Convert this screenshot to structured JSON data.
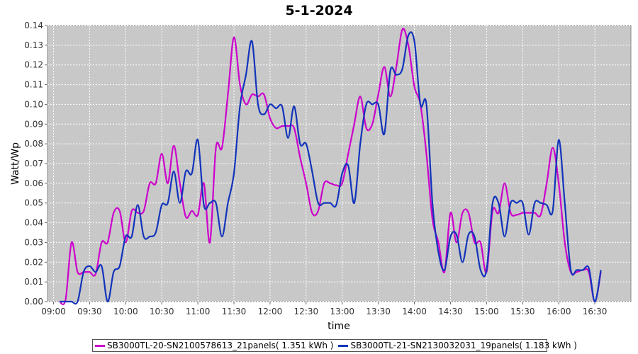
{
  "chart_data": {
    "type": "line",
    "title": "5-1-2024",
    "xlabel": "time",
    "ylabel": "Watt/Wp",
    "xlim": [
      "08:55",
      "17:00"
    ],
    "ylim": [
      0,
      0.14
    ],
    "yticks": [
      "0.00",
      "0.01",
      "0.02",
      "0.03",
      "0.04",
      "0.05",
      "0.06",
      "0.07",
      "0.08",
      "0.09",
      "0.10",
      "0.11",
      "0.12",
      "0.13",
      "0.14"
    ],
    "xticks": [
      "09:00",
      "09:30",
      "10:00",
      "10:30",
      "11:00",
      "11:30",
      "12:00",
      "12:30",
      "13:00",
      "13:30",
      "14:00",
      "14:30",
      "15:00",
      "15:30",
      "16:00",
      "16:30"
    ],
    "grid": true,
    "legend_position": "bottom",
    "series": [
      {
        "name": "SB3000TL-20-SN2100578613_21panels( 1.351 kWh )",
        "color": "#cc00cc",
        "x": [
          "09:05",
          "09:10",
          "09:15",
          "09:20",
          "09:25",
          "09:30",
          "09:35",
          "09:40",
          "09:45",
          "09:50",
          "09:55",
          "10:00",
          "10:05",
          "10:10",
          "10:15",
          "10:20",
          "10:25",
          "10:30",
          "10:35",
          "10:40",
          "10:45",
          "10:50",
          "10:55",
          "11:00",
          "11:05",
          "11:10",
          "11:15",
          "11:20",
          "11:25",
          "11:30",
          "11:35",
          "11:40",
          "11:45",
          "11:50",
          "11:55",
          "12:00",
          "12:05",
          "12:10",
          "12:15",
          "12:20",
          "12:25",
          "12:30",
          "12:35",
          "12:40",
          "12:45",
          "12:50",
          "12:55",
          "13:00",
          "13:05",
          "13:10",
          "13:15",
          "13:20",
          "13:25",
          "13:30",
          "13:35",
          "13:40",
          "13:45",
          "13:50",
          "13:55",
          "14:00",
          "14:05",
          "14:10",
          "14:15",
          "14:20",
          "14:25",
          "14:30",
          "14:35",
          "14:40",
          "14:45",
          "14:50",
          "14:55",
          "15:00",
          "15:05",
          "15:10",
          "15:15",
          "15:20",
          "15:25",
          "15:30",
          "15:35",
          "15:40",
          "15:45",
          "15:50",
          "15:55",
          "16:00",
          "16:05",
          "16:10",
          "16:15",
          "16:20",
          "16:25",
          "16:30",
          "16:35"
        ],
        "values": [
          0.0,
          0.001,
          0.03,
          0.015,
          0.015,
          0.015,
          0.014,
          0.03,
          0.03,
          0.045,
          0.046,
          0.03,
          0.046,
          0.045,
          0.046,
          0.06,
          0.06,
          0.075,
          0.06,
          0.079,
          0.06,
          0.043,
          0.046,
          0.044,
          0.06,
          0.03,
          0.078,
          0.078,
          0.105,
          0.134,
          0.11,
          0.1,
          0.105,
          0.104,
          0.105,
          0.093,
          0.088,
          0.089,
          0.089,
          0.088,
          0.073,
          0.06,
          0.045,
          0.046,
          0.06,
          0.06,
          0.059,
          0.06,
          0.075,
          0.09,
          0.104,
          0.088,
          0.09,
          0.105,
          0.119,
          0.104,
          0.119,
          0.138,
          0.13,
          0.109,
          0.1,
          0.075,
          0.042,
          0.03,
          0.015,
          0.045,
          0.03,
          0.045,
          0.045,
          0.03,
          0.03,
          0.015,
          0.046,
          0.045,
          0.06,
          0.045,
          0.044,
          0.045,
          0.045,
          0.045,
          0.044,
          0.06,
          0.078,
          0.06,
          0.03,
          0.015,
          0.015,
          0.016,
          0.015,
          0.0,
          0.015
        ]
      },
      {
        "name": "SB3000TL-21-SN2130032031_19panels( 1.183 kWh )",
        "color": "#1133bb",
        "x": [
          "09:05",
          "09:10",
          "09:15",
          "09:20",
          "09:25",
          "09:30",
          "09:35",
          "09:40",
          "09:45",
          "09:50",
          "09:55",
          "10:00",
          "10:05",
          "10:10",
          "10:15",
          "10:20",
          "10:25",
          "10:30",
          "10:35",
          "10:40",
          "10:45",
          "10:50",
          "10:55",
          "11:00",
          "11:05",
          "11:10",
          "11:15",
          "11:20",
          "11:25",
          "11:30",
          "11:35",
          "11:40",
          "11:45",
          "11:50",
          "11:55",
          "12:00",
          "12:05",
          "12:10",
          "12:15",
          "12:20",
          "12:25",
          "12:30",
          "12:35",
          "12:40",
          "12:45",
          "12:50",
          "12:55",
          "13:00",
          "13:05",
          "13:10",
          "13:15",
          "13:20",
          "13:25",
          "13:30",
          "13:35",
          "13:40",
          "13:45",
          "13:50",
          "13:55",
          "14:00",
          "14:05",
          "14:10",
          "14:15",
          "14:20",
          "14:25",
          "14:30",
          "14:35",
          "14:40",
          "14:45",
          "14:50",
          "14:55",
          "15:00",
          "15:05",
          "15:10",
          "15:15",
          "15:20",
          "15:25",
          "15:30",
          "15:35",
          "15:40",
          "15:45",
          "15:50",
          "15:55",
          "16:00",
          "16:05",
          "16:10",
          "16:15",
          "16:20",
          "16:25",
          "16:30",
          "16:35"
        ],
        "values": [
          0.0,
          0.0,
          0.0,
          0.0,
          0.015,
          0.018,
          0.015,
          0.018,
          0.0,
          0.015,
          0.018,
          0.033,
          0.033,
          0.049,
          0.033,
          0.033,
          0.035,
          0.049,
          0.05,
          0.066,
          0.05,
          0.066,
          0.065,
          0.082,
          0.049,
          0.05,
          0.05,
          0.033,
          0.05,
          0.065,
          0.099,
          0.115,
          0.132,
          0.1,
          0.095,
          0.1,
          0.098,
          0.099,
          0.083,
          0.099,
          0.08,
          0.08,
          0.066,
          0.05,
          0.05,
          0.05,
          0.049,
          0.065,
          0.069,
          0.05,
          0.08,
          0.1,
          0.1,
          0.1,
          0.085,
          0.117,
          0.115,
          0.118,
          0.135,
          0.132,
          0.1,
          0.1,
          0.05,
          0.025,
          0.016,
          0.033,
          0.034,
          0.02,
          0.034,
          0.033,
          0.016,
          0.016,
          0.05,
          0.05,
          0.033,
          0.05,
          0.05,
          0.05,
          0.034,
          0.05,
          0.05,
          0.049,
          0.046,
          0.082,
          0.05,
          0.016,
          0.016,
          0.016,
          0.017,
          0.0,
          0.016
        ]
      }
    ]
  }
}
